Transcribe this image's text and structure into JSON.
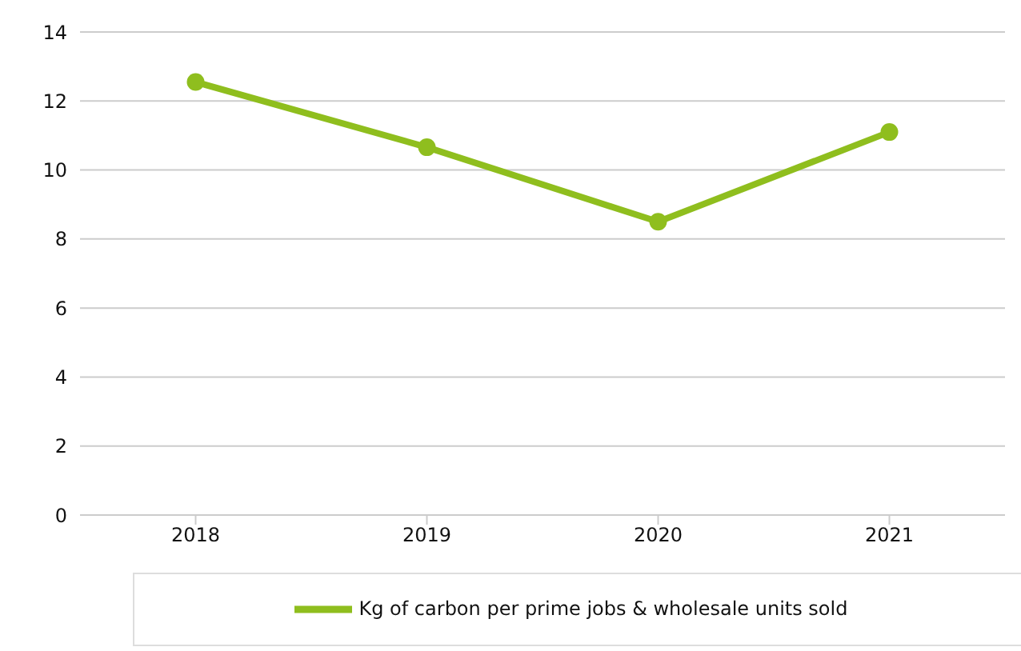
{
  "chart_data": {
    "type": "line",
    "categories": [
      "2018",
      "2019",
      "2020",
      "2021"
    ],
    "series": [
      {
        "name": "Kg of carbon per prime jobs & wholesale units sold",
        "color": "#8fbe1e",
        "values": [
          12.55,
          10.66,
          8.5,
          11.1
        ]
      }
    ],
    "ylim": [
      0,
      14
    ],
    "yticks": [
      0,
      2,
      4,
      6,
      8,
      10,
      12,
      14
    ],
    "grid": "y",
    "legend": "bottom",
    "marker": "circle",
    "line_style": "solid"
  }
}
